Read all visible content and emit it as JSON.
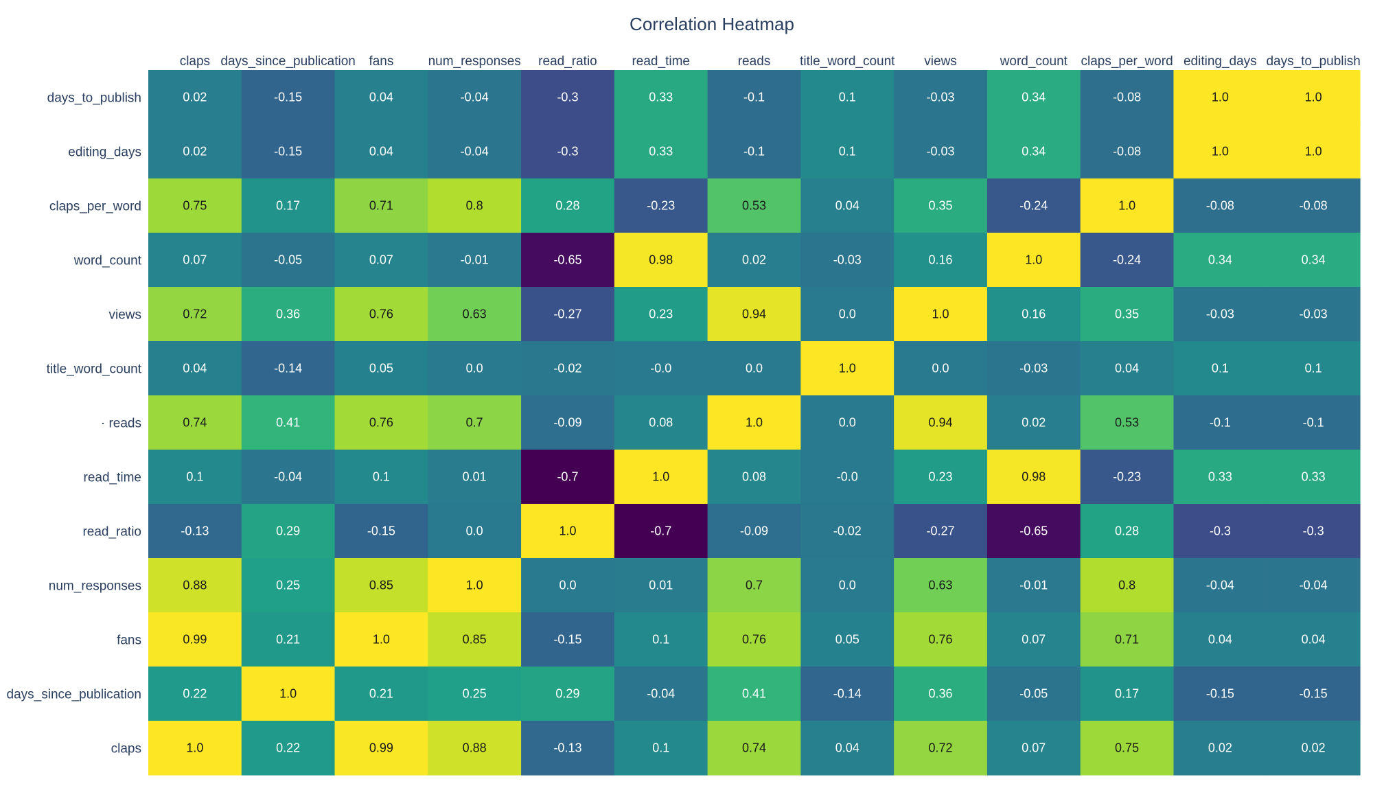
{
  "chart_data": {
    "type": "heatmap",
    "title": "Correlation Heatmap",
    "colorscale": "viridis",
    "zlim": [
      -0.7,
      1.0
    ],
    "x": [
      "claps",
      "days_since_publication",
      "fans",
      "num_responses",
      "read_ratio",
      "read_time",
      "reads",
      "title_word_count",
      "views",
      "word_count",
      "claps_per_word",
      "editing_days",
      "days_to_publish"
    ],
    "y": [
      "days_to_publish",
      "editing_days",
      "claps_per_word",
      "word_count",
      "views",
      "title_word_count",
      "reads",
      "read_time",
      "read_ratio",
      "num_responses",
      "fans",
      "days_since_publication",
      "claps"
    ],
    "y_tick_labels": [
      "days_to_publish",
      "editing_days",
      "claps_per_word",
      "word_count",
      "views",
      "title_word_count",
      "· reads",
      "read_time",
      "read_ratio",
      "num_responses",
      "fans",
      "days_since_publication",
      "claps"
    ],
    "z": [
      [
        0.02,
        -0.15,
        0.04,
        -0.04,
        -0.3,
        0.33,
        -0.1,
        0.1,
        -0.03,
        0.34,
        -0.08,
        1.0,
        1.0
      ],
      [
        0.02,
        -0.15,
        0.04,
        -0.04,
        -0.3,
        0.33,
        -0.1,
        0.1,
        -0.03,
        0.34,
        -0.08,
        1.0,
        1.0
      ],
      [
        0.75,
        0.17,
        0.71,
        0.8,
        0.28,
        -0.23,
        0.53,
        0.04,
        0.35,
        -0.24,
        1.0,
        -0.08,
        -0.08
      ],
      [
        0.07,
        -0.05,
        0.07,
        -0.01,
        -0.65,
        0.98,
        0.02,
        -0.03,
        0.16,
        1.0,
        -0.24,
        0.34,
        0.34
      ],
      [
        0.72,
        0.36,
        0.76,
        0.63,
        -0.27,
        0.23,
        0.94,
        0.0,
        1.0,
        0.16,
        0.35,
        -0.03,
        -0.03
      ],
      [
        0.04,
        -0.14,
        0.05,
        0.0,
        -0.02,
        -0.0,
        0.0,
        1.0,
        0.0,
        -0.03,
        0.04,
        0.1,
        0.1
      ],
      [
        0.74,
        0.41,
        0.76,
        0.7,
        -0.09,
        0.08,
        1.0,
        0.0,
        0.94,
        0.02,
        0.53,
        -0.1,
        -0.1
      ],
      [
        0.1,
        -0.04,
        0.1,
        0.01,
        -0.7,
        1.0,
        0.08,
        -0.0,
        0.23,
        0.98,
        -0.23,
        0.33,
        0.33
      ],
      [
        -0.13,
        0.29,
        -0.15,
        0.0,
        1.0,
        -0.7,
        -0.09,
        -0.02,
        -0.27,
        -0.65,
        0.28,
        -0.3,
        -0.3
      ],
      [
        0.88,
        0.25,
        0.85,
        1.0,
        0.0,
        0.01,
        0.7,
        0.0,
        0.63,
        -0.01,
        0.8,
        -0.04,
        -0.04
      ],
      [
        0.99,
        0.21,
        1.0,
        0.85,
        -0.15,
        0.1,
        0.76,
        0.05,
        0.76,
        0.07,
        0.71,
        0.04,
        0.04
      ],
      [
        0.22,
        1.0,
        0.21,
        0.25,
        0.29,
        -0.04,
        0.41,
        -0.14,
        0.36,
        -0.05,
        0.17,
        -0.15,
        -0.15
      ],
      [
        1.0,
        0.22,
        0.99,
        0.88,
        -0.13,
        0.1,
        0.74,
        0.04,
        0.72,
        0.07,
        0.75,
        0.02,
        0.02
      ]
    ],
    "z_labels": [
      [
        "0.02",
        "-0.15",
        "0.04",
        "-0.04",
        "-0.3",
        "0.33",
        "-0.1",
        "0.1",
        "-0.03",
        "0.34",
        "-0.08",
        "1.0",
        "1.0"
      ],
      [
        "0.02",
        "-0.15",
        "0.04",
        "-0.04",
        "-0.3",
        "0.33",
        "-0.1",
        "0.1",
        "-0.03",
        "0.34",
        "-0.08",
        "1.0",
        "1.0"
      ],
      [
        "0.75",
        "0.17",
        "0.71",
        "0.8",
        "0.28",
        "-0.23",
        "0.53",
        "0.04",
        "0.35",
        "-0.24",
        "1.0",
        "-0.08",
        "-0.08"
      ],
      [
        "0.07",
        "-0.05",
        "0.07",
        "-0.01",
        "-0.65",
        "0.98",
        "0.02",
        "-0.03",
        "0.16",
        "1.0",
        "-0.24",
        "0.34",
        "0.34"
      ],
      [
        "0.72",
        "0.36",
        "0.76",
        "0.63",
        "-0.27",
        "0.23",
        "0.94",
        "0.0",
        "1.0",
        "0.16",
        "0.35",
        "-0.03",
        "-0.03"
      ],
      [
        "0.04",
        "-0.14",
        "0.05",
        "0.0",
        "-0.02",
        "-0.0",
        "0.0",
        "1.0",
        "0.0",
        "-0.03",
        "0.04",
        "0.1",
        "0.1"
      ],
      [
        "0.74",
        "0.41",
        "0.76",
        "0.7",
        "-0.09",
        "0.08",
        "1.0",
        "0.0",
        "0.94",
        "0.02",
        "0.53",
        "-0.1",
        "-0.1"
      ],
      [
        "0.1",
        "-0.04",
        "0.1",
        "0.01",
        "-0.7",
        "1.0",
        "0.08",
        "-0.0",
        "0.23",
        "0.98",
        "-0.23",
        "0.33",
        "0.33"
      ],
      [
        "-0.13",
        "0.29",
        "-0.15",
        "0.0",
        "1.0",
        "-0.7",
        "-0.09",
        "-0.02",
        "-0.27",
        "-0.65",
        "0.28",
        "-0.3",
        "-0.3"
      ],
      [
        "0.88",
        "0.25",
        "0.85",
        "1.0",
        "0.0",
        "0.01",
        "0.7",
        "0.0",
        "0.63",
        "-0.01",
        "0.8",
        "-0.04",
        "-0.04"
      ],
      [
        "0.99",
        "0.21",
        "1.0",
        "0.85",
        "-0.15",
        "0.1",
        "0.76",
        "0.05",
        "0.76",
        "0.07",
        "0.71",
        "0.04",
        "0.04"
      ],
      [
        "0.22",
        "1.0",
        "0.21",
        "0.25",
        "0.29",
        "-0.04",
        "0.41",
        "-0.14",
        "0.36",
        "-0.05",
        "0.17",
        "-0.15",
        "-0.15"
      ],
      [
        "1.0",
        "0.22",
        "0.99",
        "0.88",
        "-0.13",
        "0.1",
        "0.74",
        "0.04",
        "0.72",
        "0.07",
        "0.75",
        "0.02",
        "0.02"
      ]
    ]
  }
}
